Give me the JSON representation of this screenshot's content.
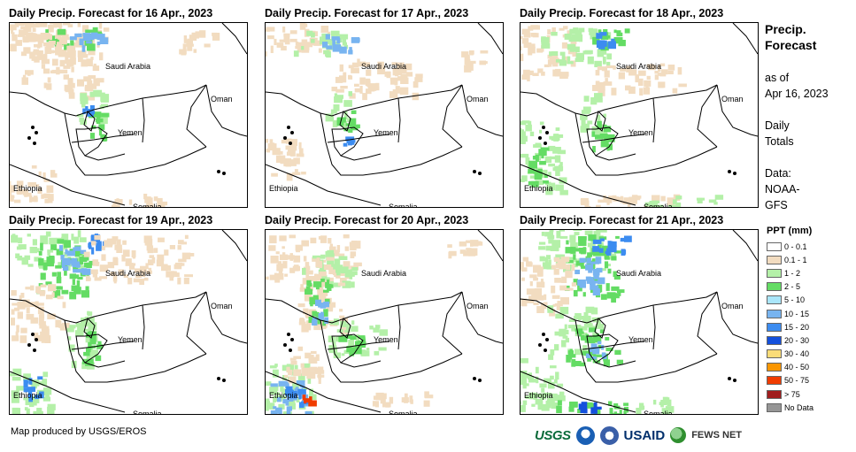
{
  "panels": [
    {
      "title": "Daily Precip. Forecast for 16 Apr., 2023"
    },
    {
      "title": "Daily Precip. Forecast for 17 Apr., 2023"
    },
    {
      "title": "Daily Precip. Forecast for 18 Apr., 2023"
    },
    {
      "title": "Daily Precip. Forecast for 19 Apr., 2023"
    },
    {
      "title": "Daily Precip. Forecast for 20 Apr., 2023"
    },
    {
      "title": "Daily Precip. Forecast for 21 Apr., 2023"
    }
  ],
  "map_labels": {
    "saudi": "Saudi Arabia",
    "oman": "Oman",
    "yemen": "Yemen",
    "ethiopia": "Ethiopia",
    "somalia": "Somalia"
  },
  "side": {
    "title_line1": "Precip.",
    "title_line2": "Forecast",
    "asof_line1": "as of",
    "asof_line2": "Apr 16, 2023",
    "totals_line1": "Daily",
    "totals_line2": "Totals",
    "data_line1": "Data:",
    "data_line2": "NOAA-",
    "data_line3": "GFS"
  },
  "legend": {
    "title": "PPT (mm)",
    "items": [
      {
        "label": "0 - 0.1",
        "color": "#ffffff"
      },
      {
        "label": "0.1 - 1",
        "color": "#f2dcc0"
      },
      {
        "label": "1 - 2",
        "color": "#b4f0a8"
      },
      {
        "label": "2 - 5",
        "color": "#64dc64"
      },
      {
        "label": "5 - 10",
        "color": "#aae6fa"
      },
      {
        "label": "10 - 15",
        "color": "#78b4f0"
      },
      {
        "label": "15 - 20",
        "color": "#3c8cf0"
      },
      {
        "label": "20 - 30",
        "color": "#1450dc"
      },
      {
        "label": "30 - 40",
        "color": "#fadc78"
      },
      {
        "label": "40 - 50",
        "color": "#fa9600"
      },
      {
        "label": "50 - 75",
        "color": "#f03c00"
      },
      {
        "label": "> 75",
        "color": "#a01e1e"
      },
      {
        "label": "No Data",
        "color": "#969696"
      }
    ]
  },
  "credit": "Map produced by USGS/EROS",
  "logos": {
    "usgs": "USGS",
    "usaid": "USAID",
    "fews": "FEWS NET"
  }
}
